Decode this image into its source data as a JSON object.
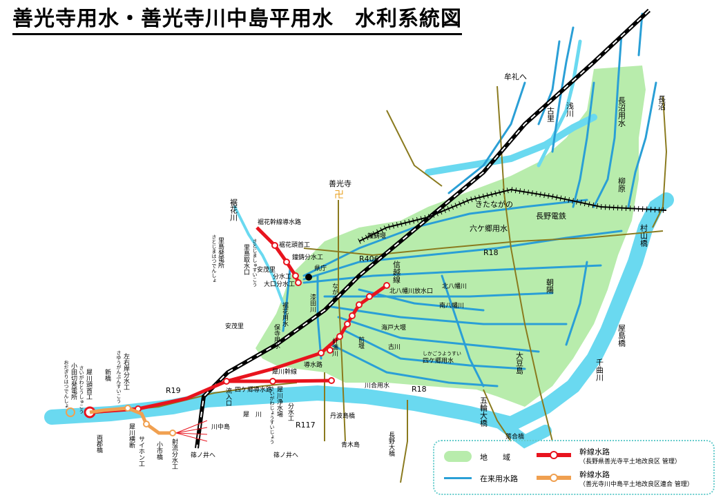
{
  "title": "善光寺用水・善光寺川中島平用水　水利系統図",
  "legend": {
    "area": "地　　域",
    "existing_channel": "在来用水路",
    "main_red": "幹線水路",
    "main_red_note": "（長野県善光寺平土地改良区 管理）",
    "main_orange": "幹線水路",
    "main_orange_note": "（善光寺川中島平土地改良区連合 管理）"
  },
  "colors": {
    "area": "#b8ecac",
    "river": "#6ad9f0",
    "channel": "#2a9fd6",
    "red": "#e8141e",
    "orange": "#f0a050",
    "road": "#8a7a1e"
  },
  "labels": {
    "muregawa": "牟礼へ",
    "furusato": "古里",
    "asakawa": "浅川",
    "naganuma_yosui": "長沼用水",
    "naganuma": "長沼",
    "yanagihara": "柳原",
    "zenkoji": "善光寺",
    "kitanagano": "きたながの",
    "nagano_dentetsu": "長野電鉄",
    "rokkago_yosui": "六ケ郷用水",
    "murayama_bashi": "村山橋",
    "kakebana_kawa": "裾花川",
    "kakebana_kansen": "裾花幹線導水路",
    "kakebana_tooshu": "裾花頭首工",
    "kanecha_bunsui": "鐘鋳分水工",
    "kanecha_zeki": "鐘鋳堰",
    "kencho": "県庁",
    "r406": "R406",
    "r18_top": "R18",
    "shinetsu": "信越線",
    "kitahachiman_hoshui": "北八幡川放水口",
    "kitahachiman": "北八幡川",
    "minamihachiman": "南八幡川",
    "asahi": "朝陽",
    "yashima_bashi": "屋島橋",
    "satojima_hatsuden": "里島発電所",
    "satojima_hatsuden_kana": "さとじまはつでんしょ",
    "satojima_shusui": "里島取水口",
    "satojima_kana": "さとじましゅすいこう",
    "bunsui": "分水工",
    "anmoichi_1": "安茂里",
    "ooguchi_bunsui": "大口分水工",
    "kakebana_yosui": "裾花用水",
    "shiota": "漆田川",
    "nagano_kana": "ながの",
    "kaifu": "海戸大堰",
    "maeseki": "前堰",
    "furukawa": "古川",
    "daizu": "大豆島",
    "chikuma": "千曲川",
    "anmoichi_2": "安茂里",
    "hotaji": "保寺用水",
    "keta": "計満川",
    "saigawa_kansen": "犀川幹線",
    "doshui_ro": "導水路",
    "rokkago_seki": "四ケ郷用水",
    "rokkago_kana": "しかごうようすい",
    "ryunyu": "流入口",
    "shikago_doshui": "四ケ郷導水路",
    "saigawa_josui": "犀川浄水場",
    "saigawa_jo_kana": "さいがわじょうすいじょう",
    "bunsui_ko": "分水工",
    "kawaai_yosui": "川合用水",
    "r18_bottom": "R18",
    "gorin": "五輪大橋",
    "r19": "R19",
    "sagan_bunsui": "左右岸分水工",
    "sagan_kana": "さゆうがんぶんすいこう",
    "niihashi": "新橋",
    "saigawa_tooshu": "犀川頭首工",
    "saigawa_tooshu_kana": "さいがわとうしゅこう",
    "odagiri": "小田切発電所",
    "odagiri_kana": "おだぎりはつでんしょ",
    "saigawa": "犀川",
    "kawanakajima": "川中島",
    "r117": "R117",
    "tanba": "丹波島橋",
    "rvjo": "川中島",
    "ryogun": "両郡橋",
    "saigawa_odan": "犀川横断",
    "saihon": "サイホン工",
    "komon": "小市橋",
    "isha_bunsui": "射流分水工",
    "shinonoi_1": "篠ノ井へ",
    "shinonoi_2": "篠ノ井へ",
    "aoki": "青木島",
    "nagano_ohashi": "長野大橋",
    "rakugo": "落合橋",
    "saigawa_label": "犀　川"
  }
}
